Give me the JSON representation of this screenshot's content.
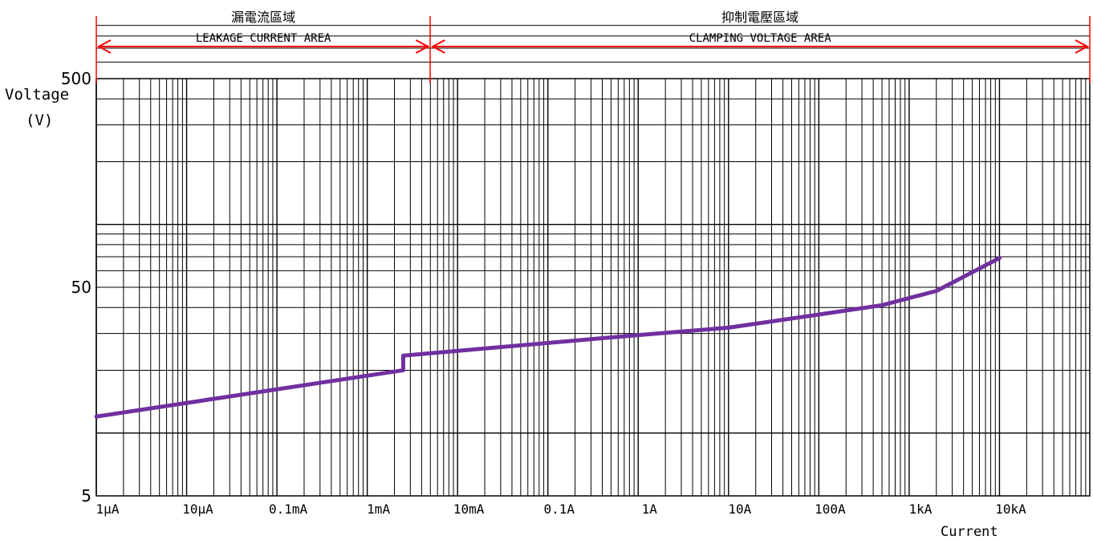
{
  "chart_data": {
    "type": "line",
    "x_scale": "log",
    "y_scale": "log",
    "xlim": [
      1e-06,
      100000
    ],
    "ylim": [
      5,
      500
    ],
    "grid": true,
    "legend": "none",
    "ylabel_line1": "Voltage",
    "ylabel_line2": "(V)",
    "xlabel": "Current",
    "y_ticks": [
      {
        "value": 5,
        "label": "5"
      },
      {
        "value": 50,
        "label": "50"
      },
      {
        "value": 500,
        "label": "500"
      }
    ],
    "x_ticks": [
      {
        "value": 1e-06,
        "label": "1μA"
      },
      {
        "value": 1e-05,
        "label": "10μA"
      },
      {
        "value": 0.0001,
        "label": "0.1mA"
      },
      {
        "value": 0.001,
        "label": "1mA"
      },
      {
        "value": 0.01,
        "label": "10mA"
      },
      {
        "value": 0.1,
        "label": "0.1A"
      },
      {
        "value": 1,
        "label": "1A"
      },
      {
        "value": 10,
        "label": "10A"
      },
      {
        "value": 100,
        "label": "100A"
      },
      {
        "value": 1000,
        "label": "1kA"
      },
      {
        "value": 10000,
        "label": "10kA"
      }
    ],
    "annotations": [
      {
        "name": "leakage-area",
        "title": "漏電流區域",
        "subtitle": "LEAKAGE CURRENT AREA",
        "x_from": 1e-06,
        "x_to": 0.005
      },
      {
        "name": "clamping-area",
        "title": "抑制電壓區域",
        "subtitle": "CLAMPING VOLTAGE AREA",
        "x_from": 0.005,
        "x_to": 100000
      }
    ],
    "series": [
      {
        "color": "#7030A0",
        "points": [
          {
            "x": 1e-06,
            "y": 12
          },
          {
            "x": 0.0025,
            "y": 20
          },
          {
            "x": 0.0025,
            "y": 23.5
          },
          {
            "x": 1,
            "y": 29.5
          },
          {
            "x": 10,
            "y": 32
          },
          {
            "x": 100,
            "y": 37
          },
          {
            "x": 500,
            "y": 41
          },
          {
            "x": 2000,
            "y": 48
          },
          {
            "x": 5000,
            "y": 59
          },
          {
            "x": 10000,
            "y": 69
          }
        ]
      }
    ]
  }
}
